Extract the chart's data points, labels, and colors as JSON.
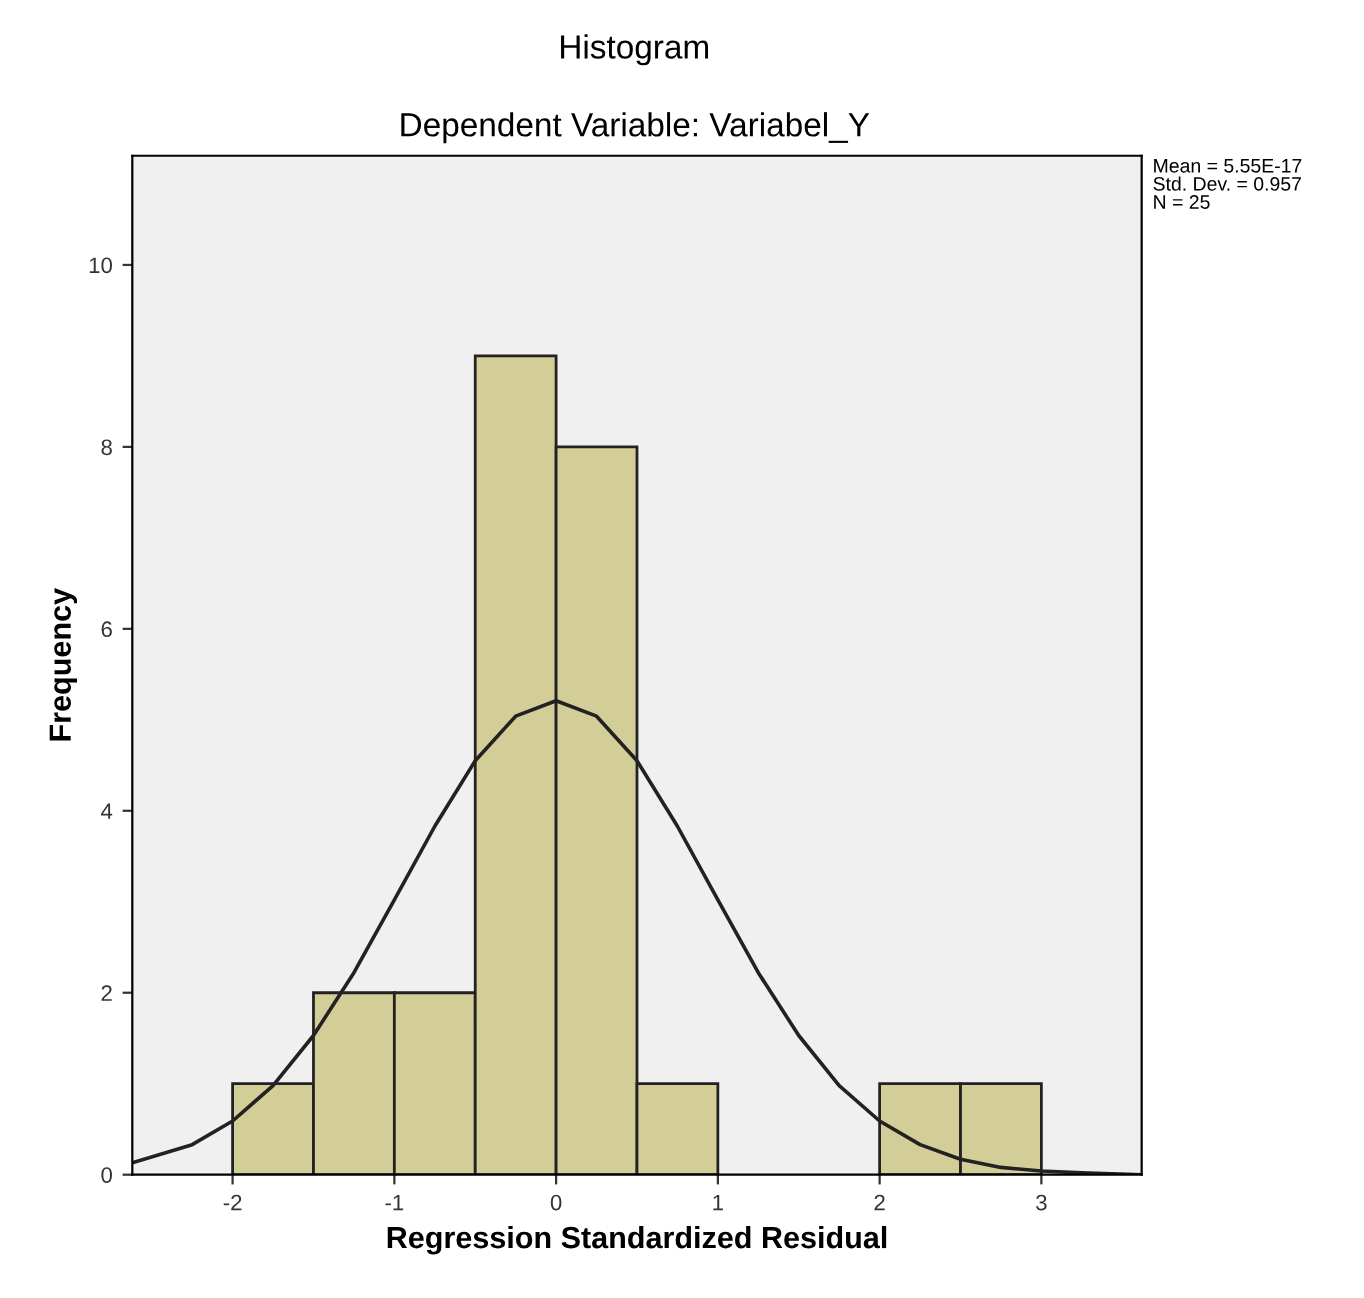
{
  "chart_data": {
    "type": "histogram",
    "title": "Histogram",
    "subtitle": "Dependent Variable: Variabel_Y",
    "xlabel": "Regression Standardized Residual",
    "ylabel": "Frequency",
    "bins": [
      -2,
      -1.5,
      -1,
      -0.5,
      0,
      0.5,
      1,
      1.5,
      2,
      2.5,
      3
    ],
    "values": [
      1,
      2,
      2,
      9,
      8,
      1,
      0,
      0,
      1,
      1
    ],
    "color": "#d3ce97",
    "series": [
      {
        "type": "line",
        "color": "#222222",
        "x": [
          -2.62,
          -2.25,
          -2,
          -1.75,
          -1.5,
          -1.25,
          -1,
          -0.75,
          -0.5,
          -0.25,
          0,
          0.25,
          0.5,
          0.75,
          1,
          1.25,
          1.5,
          1.75,
          2,
          2.25,
          2.5,
          2.75,
          3,
          3.25,
          3.62
        ],
        "values": [
          0.13,
          0.33,
          0.59,
          0.98,
          1.53,
          2.22,
          3.02,
          3.83,
          4.55,
          5.04,
          5.21,
          5.04,
          4.55,
          3.83,
          3.02,
          2.22,
          1.53,
          0.98,
          0.59,
          0.33,
          0.17,
          0.08,
          0.04,
          0.02,
          0.0
        ]
      }
    ],
    "xlim": [
      -2.62,
      3.62
    ],
    "ylim": [
      0,
      11.2
    ],
    "xticks": [
      -2,
      -1,
      0,
      1,
      2,
      3
    ],
    "yticks": [
      0,
      2,
      4,
      6,
      8,
      10
    ],
    "annotations": [
      "Mean = 5.55E-17\nStd. Dev. = 0.957\nN = 25"
    ],
    "grid": false,
    "legend": false
  }
}
